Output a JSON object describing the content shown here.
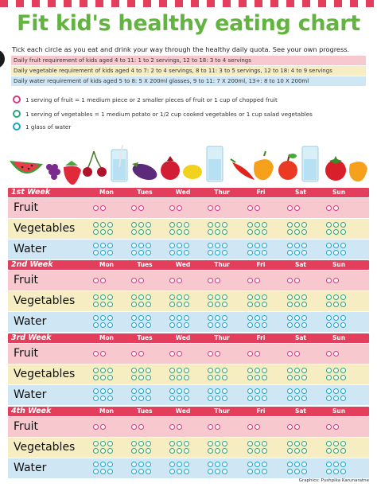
{
  "title": "Fit kid's healthy eating chart",
  "intro": "Tick each circle as you eat and drink your way through the healthy daily quota. See your own progress.",
  "requirements": [
    "Daily fruit requirement of kids aged 4 to 11: 1 to 2 servings, 12 to 18: 3 to 4 servings",
    "Daily vegetable requirement of kids aged 4 to 7: 2 to 4 servings, 8 to 11: 3 to 5 servings, 12 to 18: 4 to 9 servings",
    "Daily water requirement of kids aged 5 to 8: 5 X 200ml glasses, 9 to 11: 7 X 200ml, 13+: 8 to 10 X 200ml"
  ],
  "legend": [
    {
      "text": "1 serving of fruit = 1 medium piece or 2 smaller pieces of fruit or 1 cup of chopped fruit",
      "color": "#d63a86"
    },
    {
      "text": "1 serving of vegetables = 1 medium potato or 1/2 cup cooked vegetables or 1 cup salad vegetables",
      "color": "#2aa57a"
    },
    {
      "text": "1 glass of water",
      "color": "#19a7c9"
    }
  ],
  "days": [
    "Mon",
    "Tues",
    "Wed",
    "Thur",
    "Fri",
    "Sat",
    "Sun"
  ],
  "weeks": [
    {
      "label": "1st Week"
    },
    {
      "label": "2nd Week"
    },
    {
      "label": "3rd Week"
    },
    {
      "label": "4th Week"
    }
  ],
  "categories": [
    {
      "label": "Fruit",
      "key": "fruit",
      "circles": 2,
      "color": "#d63a86"
    },
    {
      "label": "Vegetables",
      "key": "veg",
      "circles": 6,
      "color": "#2aa57a"
    },
    {
      "label": "Water",
      "key": "water",
      "circles": 6,
      "color": "#19a7c9"
    }
  ],
  "colors": {
    "title": "#62b33f",
    "header": "#e33f5d",
    "fruit_row": "#f7c9cf",
    "veg_row": "#f6eec2",
    "water_row": "#cfe7f4"
  },
  "credit": "Graphics: Pushpika Karunaratne"
}
